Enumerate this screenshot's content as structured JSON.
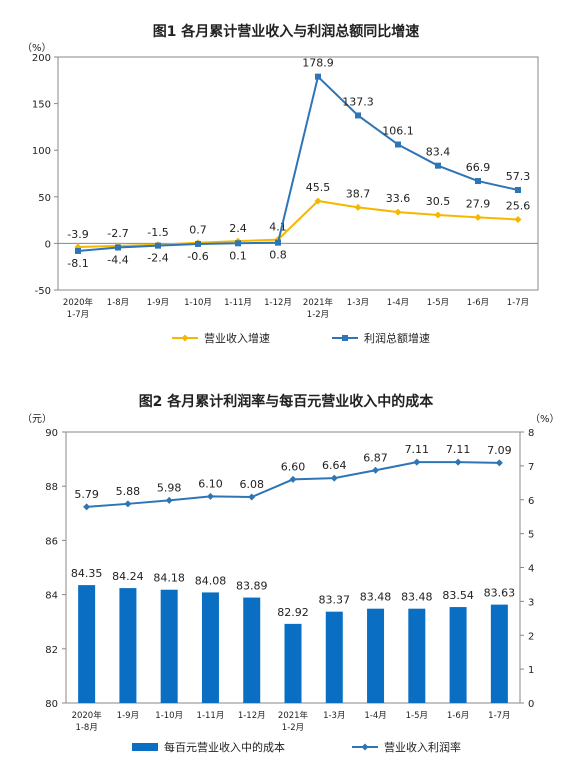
{
  "colors": {
    "revenue": "#f5b800",
    "profit": "#2e75b6",
    "bar": "#0a6fc2",
    "rate": "#2e75b6",
    "axis": "#888888",
    "text": "#222222"
  },
  "chart_data": [
    {
      "type": "line",
      "title": "图1  各月累计营业收入与利润总额同比增速",
      "ylabel": "（%）",
      "categories": [
        [
          "2020年",
          "1-7月"
        ],
        [
          "1-8月"
        ],
        [
          "1-9月"
        ],
        [
          "1-10月"
        ],
        [
          "1-11月"
        ],
        [
          "1-12月"
        ],
        [
          "2021年",
          "1-2月"
        ],
        [
          "1-3月"
        ],
        [
          "1-4月"
        ],
        [
          "1-5月"
        ],
        [
          "1-6月"
        ],
        [
          "1-7月"
        ]
      ],
      "ylim": [
        -50,
        200
      ],
      "yticks": [
        -50,
        0,
        50,
        100,
        150,
        200
      ],
      "grid": false,
      "legend": "bottom",
      "series": [
        {
          "name": "营业收入增速",
          "color_key": "revenue",
          "values": [
            -3.9,
            -2.7,
            -1.5,
            0.7,
            2.4,
            4.1,
            45.5,
            38.7,
            33.6,
            30.5,
            27.9,
            25.6
          ],
          "labels": [
            "-3.9",
            "-2.7",
            "-1.5",
            "0.7",
            "2.4",
            "4.1",
            "45.5",
            "38.7",
            "33.6",
            "30.5",
            "27.9",
            "25.6"
          ]
        },
        {
          "name": "利润总额增速",
          "color_key": "profit",
          "values": [
            -8.1,
            -4.4,
            -2.4,
            -0.6,
            0.1,
            0.8,
            178.9,
            137.3,
            106.1,
            83.4,
            66.9,
            57.3
          ],
          "labels": [
            "-8.1",
            "-4.4",
            "-2.4",
            "-0.6",
            "0.1",
            "0.8",
            "178.9",
            "137.3",
            "106.1",
            "83.4",
            "66.9",
            "57.3"
          ]
        }
      ]
    },
    {
      "type": "bar",
      "title": "图2  各月累计利润率与每百元营业收入中的成本",
      "ylabel_left": "（元）",
      "ylabel_right": "（%）",
      "categories": [
        [
          "2020年",
          "1-8月"
        ],
        [
          "1-9月"
        ],
        [
          "1-10月"
        ],
        [
          "1-11月"
        ],
        [
          "1-12月"
        ],
        [
          "2021年",
          "1-2月"
        ],
        [
          "1-3月"
        ],
        [
          "1-4月"
        ],
        [
          "1-5月"
        ],
        [
          "1-6月"
        ],
        [
          "1-7月"
        ]
      ],
      "ylim_left": [
        80,
        90
      ],
      "yticks_left": [
        80,
        82,
        84,
        86,
        88,
        90
      ],
      "ylim_right": [
        0,
        8
      ],
      "yticks_right": [
        0,
        1,
        2,
        3,
        4,
        5,
        6,
        7,
        8
      ],
      "grid": false,
      "legend": "bottom",
      "series": [
        {
          "name": "每百元营业收入中的成本",
          "kind": "bar",
          "axis": "left",
          "color_key": "bar",
          "values": [
            84.35,
            84.24,
            84.18,
            84.08,
            83.89,
            82.92,
            83.37,
            83.48,
            83.48,
            83.54,
            83.63
          ],
          "labels": [
            "84.35",
            "84.24",
            "84.18",
            "84.08",
            "83.89",
            "82.92",
            "83.37",
            "83.48",
            "83.48",
            "83.54",
            "83.63"
          ]
        },
        {
          "name": "营业收入利润率",
          "kind": "line",
          "axis": "right",
          "color_key": "rate",
          "values": [
            5.79,
            5.88,
            5.98,
            6.1,
            6.08,
            6.6,
            6.64,
            6.87,
            7.11,
            7.11,
            7.09
          ],
          "labels": [
            "5.79",
            "5.88",
            "5.98",
            "6.10",
            "6.08",
            "6.60",
            "6.64",
            "6.87",
            "7.11",
            "7.11",
            "7.09"
          ]
        }
      ]
    }
  ]
}
